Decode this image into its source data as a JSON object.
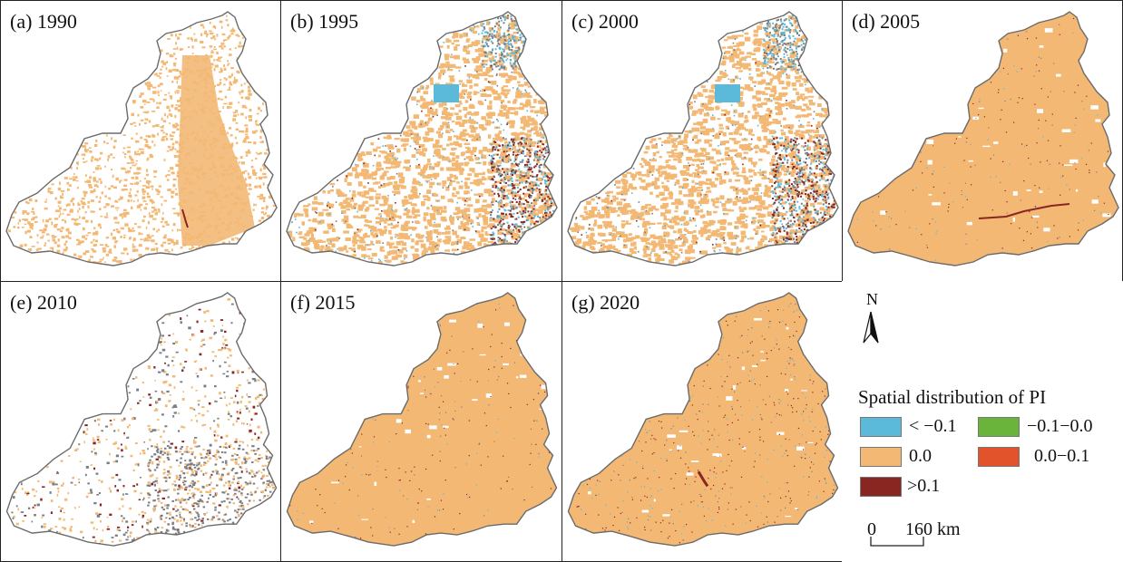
{
  "colors": {
    "boundary": "#6b6b6b",
    "panel_border": "#222222",
    "lt_neg": "#5bbad9",
    "zero": "#f3b874",
    "neg_small": "#6ab43c",
    "pos_small": "#e2522b",
    "gt_pos": "#8a2622",
    "gray": "#7a7f86"
  },
  "panels": [
    {
      "label": "(a) 1990",
      "pattern": "sparse"
    },
    {
      "label": "(b) 1995",
      "pattern": "mixed"
    },
    {
      "label": "(c) 2000",
      "pattern": "mixed"
    },
    {
      "label": "(d) 2005",
      "pattern": "dense"
    },
    {
      "label": "(e) 2010",
      "pattern": "sparse-gray"
    },
    {
      "label": "(f) 2015",
      "pattern": "dense"
    },
    {
      "label": "(g) 2020",
      "pattern": "dense-speckle"
    }
  ],
  "legend": {
    "north": "N",
    "title": "Spatial distribution of PI",
    "items": [
      {
        "label": "< −0.1",
        "color_key": "lt_neg"
      },
      {
        "label": "−0.1−0.0",
        "color_key": "neg_small"
      },
      {
        "label": "0.0",
        "color_key": "zero"
      },
      {
        "label": "0.0−0.1",
        "color_key": "pos_small"
      },
      {
        "label": ">0.1",
        "color_key": "gt_pos"
      }
    ],
    "scale": {
      "zero": "0",
      "distance": "160 km"
    }
  }
}
